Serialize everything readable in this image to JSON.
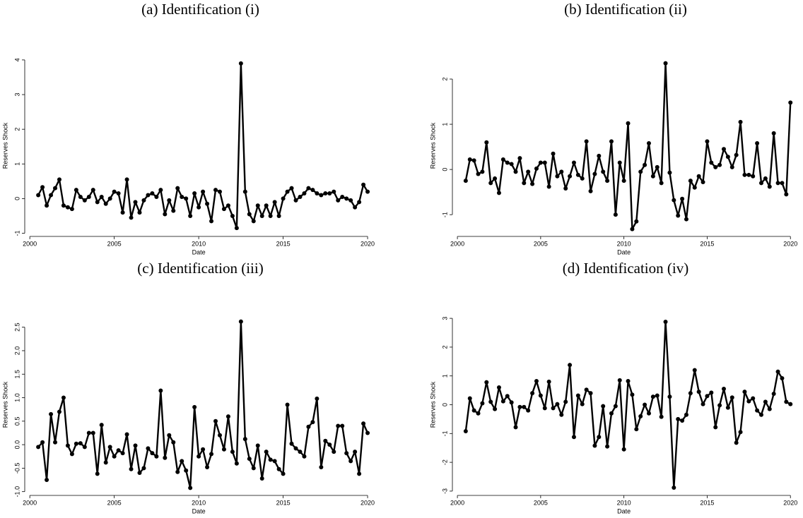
{
  "chart_data": [
    {
      "type": "line",
      "title": "(a) Identification (i)",
      "xlabel": "Date",
      "ylabel": "Reserves Shock",
      "color": "#000000",
      "x": [
        2000.5,
        2000.75,
        2001,
        2001.25,
        2001.5,
        2001.75,
        2002,
        2002.25,
        2002.5,
        2002.75,
        2003,
        2003.25,
        2003.5,
        2003.75,
        2004,
        2004.25,
        2004.5,
        2004.75,
        2005,
        2005.25,
        2005.5,
        2005.75,
        2006,
        2006.25,
        2006.5,
        2006.75,
        2007,
        2007.25,
        2007.5,
        2007.75,
        2008,
        2008.25,
        2008.5,
        2008.75,
        2009,
        2009.25,
        2009.5,
        2009.75,
        2010,
        2010.25,
        2010.5,
        2010.75,
        2011,
        2011.25,
        2011.5,
        2011.75,
        2012,
        2012.25,
        2012.5,
        2012.75,
        2013,
        2013.25,
        2013.5,
        2013.75,
        2014,
        2014.25,
        2014.5,
        2014.75,
        2015,
        2015.25,
        2015.5,
        2015.75,
        2016,
        2016.25,
        2016.5,
        2016.75,
        2017,
        2017.25,
        2017.5,
        2017.75,
        2018,
        2018.25,
        2018.5,
        2018.75,
        2019,
        2019.25,
        2019.5,
        2019.75,
        2020
      ],
      "values": [
        0.1,
        0.33,
        -0.2,
        0.1,
        0.3,
        0.55,
        -0.2,
        -0.25,
        -0.3,
        0.25,
        0.05,
        -0.05,
        0.05,
        0.25,
        -0.1,
        0.05,
        -0.15,
        0,
        0.2,
        0.15,
        -0.4,
        0.55,
        -0.55,
        -0.1,
        -0.4,
        -0.05,
        0.1,
        0.15,
        0.05,
        0.25,
        -0.45,
        -0.05,
        -0.35,
        0.3,
        0.05,
        0,
        -0.5,
        0.15,
        -0.25,
        0.2,
        -0.15,
        -0.65,
        0.25,
        0.2,
        -0.3,
        -0.2,
        -0.5,
        -0.85,
        3.9,
        0.2,
        -0.45,
        -0.65,
        -0.2,
        -0.5,
        -0.2,
        -0.5,
        -0.1,
        -0.5,
        0,
        0.2,
        0.3,
        -0.05,
        0.05,
        0.15,
        0.3,
        0.25,
        0.15,
        0.1,
        0.15,
        0.15,
        0.2,
        -0.05,
        0.05,
        0,
        -0.05,
        -0.25,
        -0.1,
        0.4,
        0.2
      ],
      "xlim": [
        1999.7,
        2020.5
      ],
      "ylim": [
        -1.05,
        4.1
      ],
      "xticks": [
        2000,
        2005,
        2010,
        2015,
        2020
      ],
      "yticks": [
        -1,
        0,
        1,
        2,
        3,
        4
      ]
    },
    {
      "type": "line",
      "title": "(b) Identification (ii)",
      "xlabel": "Date",
      "ylabel": "Reserves Shock",
      "color": "#000000",
      "x": [
        2000.5,
        2000.75,
        2001,
        2001.25,
        2001.5,
        2001.75,
        2002,
        2002.25,
        2002.5,
        2002.75,
        2003,
        2003.25,
        2003.5,
        2003.75,
        2004,
        2004.25,
        2004.5,
        2004.75,
        2005,
        2005.25,
        2005.5,
        2005.75,
        2006,
        2006.25,
        2006.5,
        2006.75,
        2007,
        2007.25,
        2007.5,
        2007.75,
        2008,
        2008.25,
        2008.5,
        2008.75,
        2009,
        2009.25,
        2009.5,
        2009.75,
        2010,
        2010.25,
        2010.5,
        2010.75,
        2011,
        2011.25,
        2011.5,
        2011.75,
        2012,
        2012.25,
        2012.5,
        2012.75,
        2013,
        2013.25,
        2013.5,
        2013.75,
        2014,
        2014.25,
        2014.5,
        2014.75,
        2015,
        2015.25,
        2015.5,
        2015.75,
        2016,
        2016.25,
        2016.5,
        2016.75,
        2017,
        2017.25,
        2017.5,
        2017.75,
        2018,
        2018.25,
        2018.5,
        2018.75,
        2019,
        2019.25,
        2019.5,
        2019.75,
        2020
      ],
      "values": [
        -0.25,
        0.22,
        0.2,
        -0.1,
        -0.05,
        0.6,
        -0.3,
        -0.2,
        -0.52,
        0.22,
        0.15,
        0.12,
        -0.05,
        0.25,
        -0.3,
        -0.05,
        -0.32,
        0.02,
        0.15,
        0.15,
        -0.38,
        0.35,
        -0.15,
        -0.05,
        -0.42,
        -0.15,
        0.15,
        -0.12,
        -0.2,
        0.62,
        -0.48,
        -0.1,
        0.3,
        -0.05,
        -0.25,
        0.62,
        -1.0,
        0.15,
        -0.25,
        1.02,
        -1.32,
        -1.15,
        -0.05,
        0.1,
        0.58,
        -0.15,
        0.05,
        -0.3,
        2.35,
        -0.07,
        -0.68,
        -1.02,
        -0.65,
        -1.1,
        -0.25,
        -0.4,
        -0.15,
        -0.28,
        0.62,
        0.15,
        0.05,
        0.1,
        0.45,
        0.28,
        0.05,
        0.32,
        1.05,
        -0.12,
        -0.12,
        -0.15,
        0.58,
        -0.3,
        -0.2,
        -0.38,
        0.8,
        -0.3,
        -0.3,
        -0.55,
        1.48
      ],
      "xlim": [
        1999.7,
        2020.5
      ],
      "ylim": [
        -1.45,
        2.5
      ],
      "xticks": [
        2000,
        2005,
        2010,
        2015,
        2020
      ],
      "yticks": [
        -1,
        0,
        1,
        2
      ]
    },
    {
      "type": "line",
      "title": "(c) Identification (iii)",
      "xlabel": "Date",
      "ylabel": "Reserves Shock",
      "color": "#000000",
      "x": [
        2000.5,
        2000.75,
        2001,
        2001.25,
        2001.5,
        2001.75,
        2002,
        2002.25,
        2002.5,
        2002.75,
        2003,
        2003.25,
        2003.5,
        2003.75,
        2004,
        2004.25,
        2004.5,
        2004.75,
        2005,
        2005.25,
        2005.5,
        2005.75,
        2006,
        2006.25,
        2006.5,
        2006.75,
        2007,
        2007.25,
        2007.5,
        2007.75,
        2008,
        2008.25,
        2008.5,
        2008.75,
        2009,
        2009.25,
        2009.5,
        2009.75,
        2010,
        2010.25,
        2010.5,
        2010.75,
        2011,
        2011.25,
        2011.5,
        2011.75,
        2012,
        2012.25,
        2012.5,
        2012.75,
        2013,
        2013.25,
        2013.5,
        2013.75,
        2014,
        2014.25,
        2014.5,
        2014.75,
        2015,
        2015.25,
        2015.5,
        2015.75,
        2016,
        2016.25,
        2016.5,
        2016.75,
        2017,
        2017.25,
        2017.5,
        2017.75,
        2018,
        2018.25,
        2018.5,
        2018.75,
        2019,
        2019.25,
        2019.5,
        2019.75,
        2020
      ],
      "values": [
        -0.05,
        0.05,
        -0.75,
        0.65,
        0.05,
        0.7,
        1.0,
        -0.02,
        -0.2,
        0.02,
        0.03,
        -0.05,
        0.25,
        0.25,
        -0.62,
        0.42,
        -0.38,
        -0.05,
        -0.25,
        -0.12,
        -0.18,
        0.22,
        -0.52,
        -0.02,
        -0.6,
        -0.5,
        -0.08,
        -0.18,
        -0.25,
        1.15,
        -0.28,
        0.2,
        0.05,
        -0.58,
        -0.35,
        -0.55,
        -0.92,
        0.8,
        -0.25,
        -0.1,
        -0.48,
        -0.2,
        0.5,
        0.2,
        -0.1,
        0.6,
        -0.15,
        -0.4,
        2.62,
        0.12,
        -0.3,
        -0.5,
        -0.02,
        -0.72,
        -0.15,
        -0.32,
        -0.35,
        -0.52,
        -0.62,
        0.85,
        0.02,
        -0.08,
        -0.15,
        -0.25,
        0.38,
        0.48,
        0.98,
        -0.48,
        0.08,
        0,
        -0.15,
        0.4,
        0.4,
        -0.18,
        -0.35,
        -0.15,
        -0.62,
        0.45,
        0.25
      ],
      "xlim": [
        1999.7,
        2020.5
      ],
      "ylim": [
        -1.05,
        2.75
      ],
      "xticks": [
        2000,
        2005,
        2010,
        2015,
        2020
      ],
      "yticks": [
        {
          "value": -1,
          "label": "-1.0"
        },
        -0.5,
        {
          "value": 0,
          "label": "0.0"
        },
        0.5,
        {
          "value": 1,
          "label": "1.0"
        },
        1.5,
        {
          "value": 2,
          "label": "2.0"
        },
        2.5
      ]
    },
    {
      "type": "line",
      "title": "(d) Identification (iv)",
      "xlabel": "Date",
      "ylabel": "Reserves Shock",
      "color": "#000000",
      "x": [
        2000.5,
        2000.75,
        2001,
        2001.25,
        2001.5,
        2001.75,
        2002,
        2002.25,
        2002.5,
        2002.75,
        2003,
        2003.25,
        2003.5,
        2003.75,
        2004,
        2004.25,
        2004.5,
        2004.75,
        2005,
        2005.25,
        2005.5,
        2005.75,
        2006,
        2006.25,
        2006.5,
        2006.75,
        2007,
        2007.25,
        2007.5,
        2007.75,
        2008,
        2008.25,
        2008.5,
        2008.75,
        2009,
        2009.25,
        2009.5,
        2009.75,
        2010,
        2010.25,
        2010.5,
        2010.75,
        2011,
        2011.25,
        2011.5,
        2011.75,
        2012,
        2012.25,
        2012.5,
        2012.75,
        2013,
        2013.25,
        2013.5,
        2013.75,
        2014,
        2014.25,
        2014.5,
        2014.75,
        2015,
        2015.25,
        2015.5,
        2015.75,
        2016,
        2016.25,
        2016.5,
        2016.75,
        2017,
        2017.25,
        2017.5,
        2017.75,
        2018,
        2018.25,
        2018.5,
        2018.75,
        2019,
        2019.25,
        2019.5,
        2019.75,
        2020
      ],
      "values": [
        -0.92,
        0.22,
        -0.2,
        -0.3,
        0.05,
        0.78,
        0.1,
        -0.15,
        0.6,
        0.12,
        0.3,
        0.08,
        -0.78,
        -0.08,
        -0.08,
        -0.2,
        0.4,
        0.82,
        0.32,
        -0.12,
        0.8,
        -0.12,
        0.02,
        -0.35,
        0.1,
        1.38,
        -1.12,
        0.32,
        0.02,
        0.52,
        0.4,
        -1.42,
        -1.12,
        -0.05,
        -1.45,
        -0.3,
        -0.05,
        0.85,
        -1.55,
        0.82,
        0.35,
        -0.85,
        -0.4,
        0,
        -0.3,
        0.28,
        0.32,
        -0.42,
        2.88,
        0.28,
        -2.88,
        -0.5,
        -0.55,
        -0.35,
        0.4,
        1.2,
        0.45,
        0.02,
        0.3,
        0.42,
        -0.78,
        -0.02,
        0.55,
        -0.1,
        0.25,
        -1.32,
        -0.95,
        0.45,
        0.12,
        0.22,
        -0.2,
        -0.35,
        0.1,
        -0.15,
        0.38,
        1.15,
        0.92,
        0.1,
        0.02
      ],
      "xlim": [
        1999.7,
        2020.5
      ],
      "ylim": [
        -3.1,
        3.1
      ],
      "xticks": [
        2000,
        2005,
        2010,
        2015,
        2020
      ],
      "yticks": [
        -3,
        -2,
        -1,
        0,
        1,
        2,
        3
      ]
    }
  ]
}
